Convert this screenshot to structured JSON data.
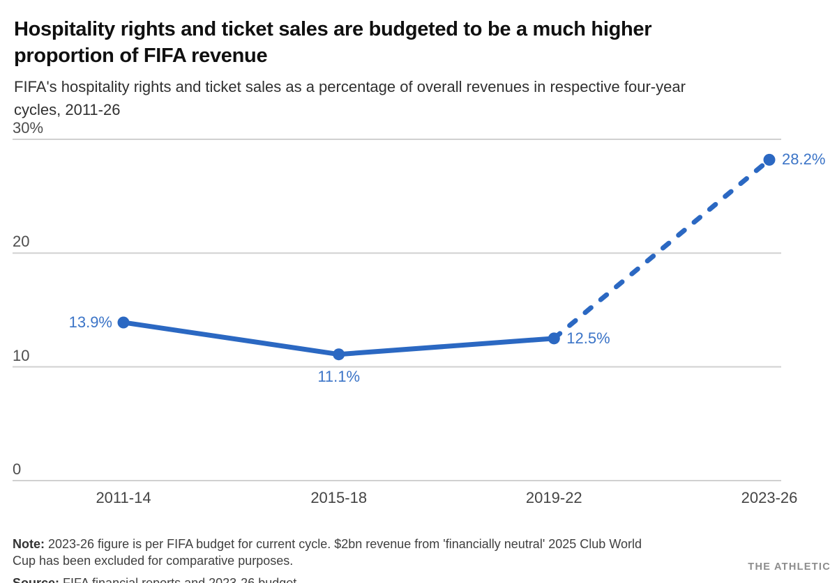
{
  "header": {
    "title": "Hospitality rights and ticket sales are budgeted to be a much higher\nproportion of FIFA revenue",
    "subtitle": "FIFA's hospitality rights and ticket sales as a percentage of overall revenues in respective four-year\ncycles, 2011-26"
  },
  "chart_data": {
    "type": "line",
    "title": "FIFA's hospitality rights and ticket sales as a percentage of overall revenues in respective four-year cycles, 2011-26",
    "categories": [
      "2011-14",
      "2015-18",
      "2019-22",
      "2023-26"
    ],
    "series": [
      {
        "name": "Hospitality rights and ticket sales as % of FIFA revenue",
        "values": [
          13.9,
          11.1,
          12.5,
          28.2
        ],
        "point_labels": [
          "13.9%",
          "11.1%",
          "12.5%",
          "28.2%"
        ],
        "label_placement": [
          "left",
          "below",
          "right",
          "right"
        ],
        "solid_segment_end_index": 2,
        "dashed_segment_note": "segment from 2019-22 to 2023-26 is dashed (budgeted figure)"
      }
    ],
    "xlabel": "",
    "ylabel": "",
    "ylim": [
      0,
      30
    ],
    "y_ticks": [
      {
        "value": 30,
        "label": "30%"
      },
      {
        "value": 20,
        "label": "20"
      },
      {
        "value": 10,
        "label": "10"
      },
      {
        "value": 0,
        "label": "0"
      }
    ],
    "grid": "horizontal only",
    "legend": "none",
    "colors": {
      "line": "#2b68c2",
      "point": "#2b68c2",
      "point_label": "#3b74c7",
      "gridline": "#d0d0d0",
      "tick_label": "#4d4d4d"
    }
  },
  "footer": {
    "note_label": "Note:",
    "note_text": " 2023-26 figure is per FIFA budget for current cycle. $2bn revenue from 'financially neutral' 2025 Club World\nCup has been excluded for comparative purposes.",
    "source_label": "Source:",
    "source_text": " FIFA financial reports and 2023-26 budget",
    "brand": "THE ATHLETIC"
  }
}
